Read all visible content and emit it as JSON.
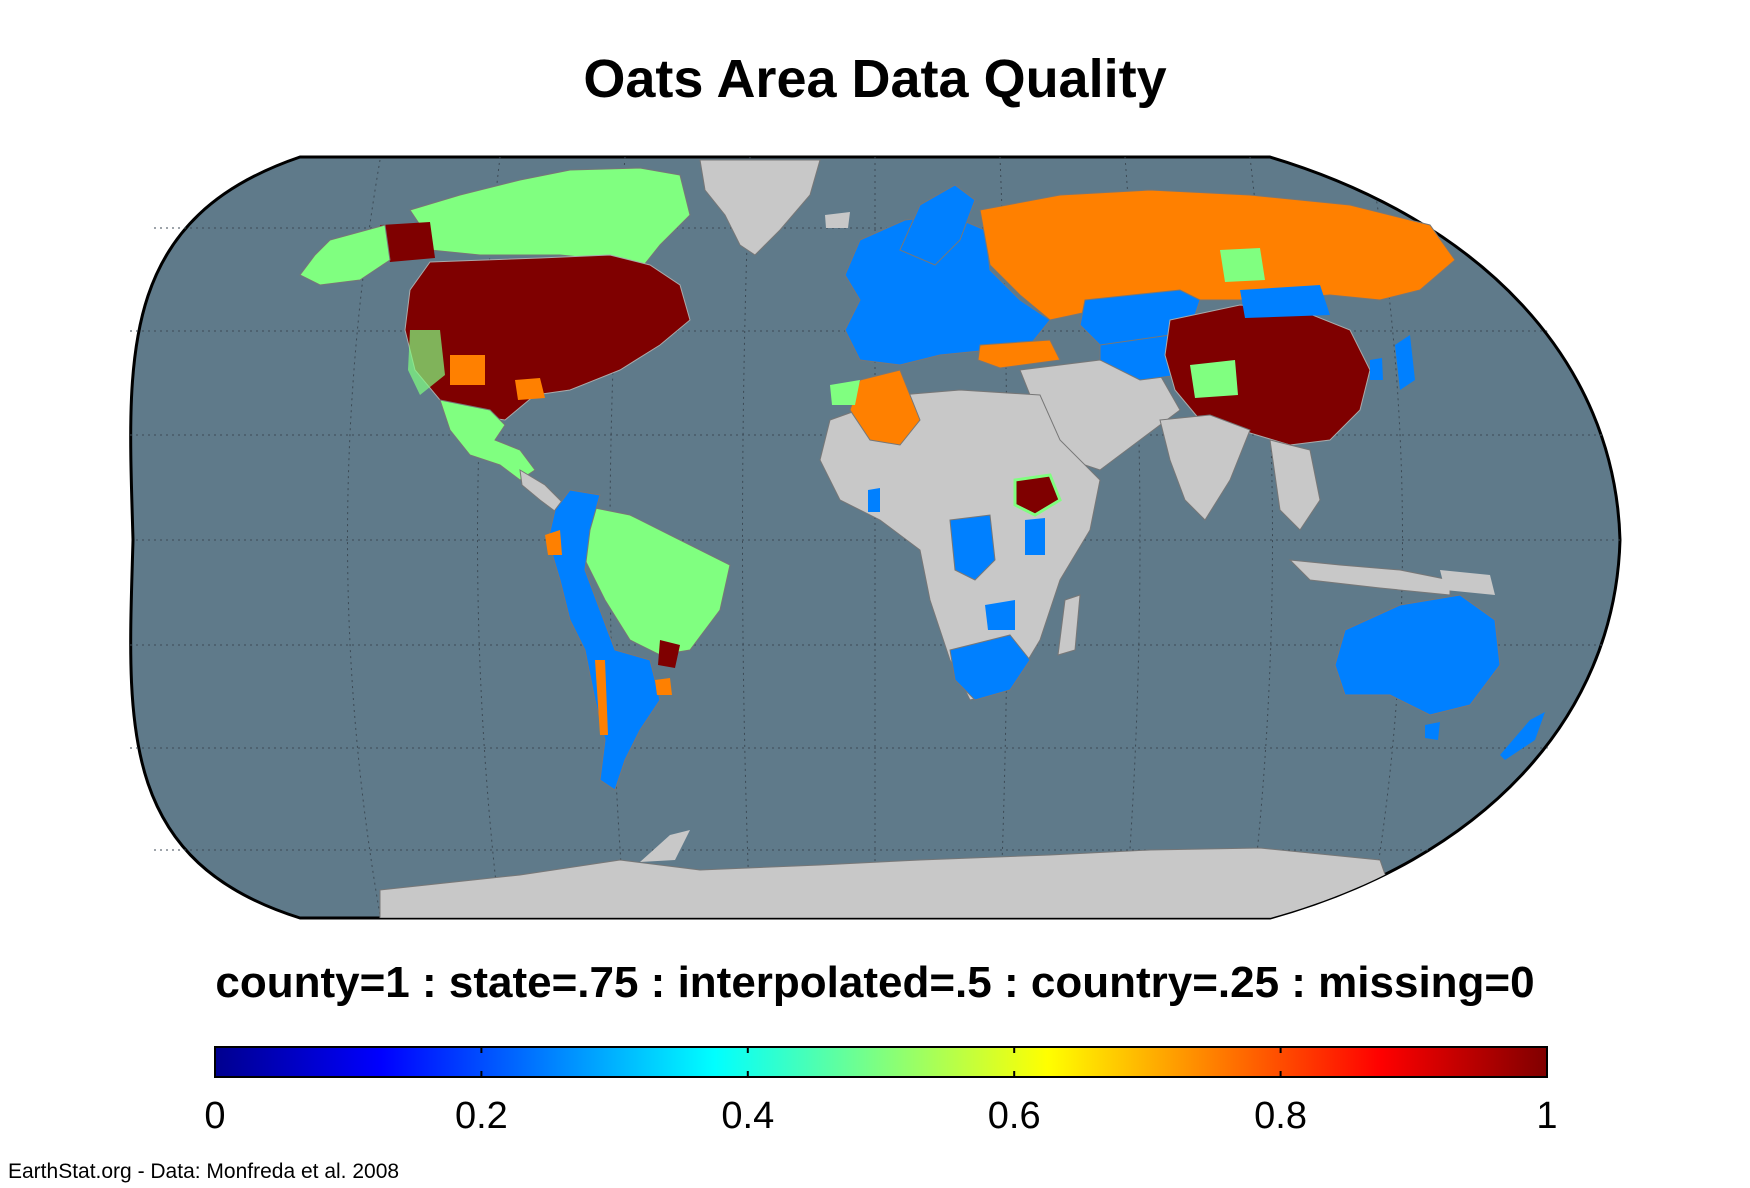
{
  "title": "Oats Area Data Quality",
  "legend_caption": "county=1 : state=.75 : interpolated=.5 : country=.25 : missing=0",
  "credit": "EarthStat.org - Data: Monfreda et al. 2008",
  "colors": {
    "ocean": "#5f7a8a",
    "no_data": "#c8c8c8",
    "county": "#7f0000",
    "state": "#ff8000",
    "interpolated": "#80ff80",
    "country": "#0080ff"
  },
  "colorbar": {
    "min": 0,
    "max": 1,
    "ticks": [
      "0",
      "0.2",
      "0.4",
      "0.6",
      "0.8",
      "1"
    ],
    "tick_values": [
      0,
      0.2,
      0.4,
      0.6,
      0.8,
      1
    ],
    "colormap": "jet"
  },
  "map_legend": [
    {
      "label": "county",
      "value": 1
    },
    {
      "label": "state",
      "value": 0.75
    },
    {
      "label": "interpolated",
      "value": 0.5
    },
    {
      "label": "country",
      "value": 0.25
    },
    {
      "label": "missing",
      "value": 0
    }
  ]
}
